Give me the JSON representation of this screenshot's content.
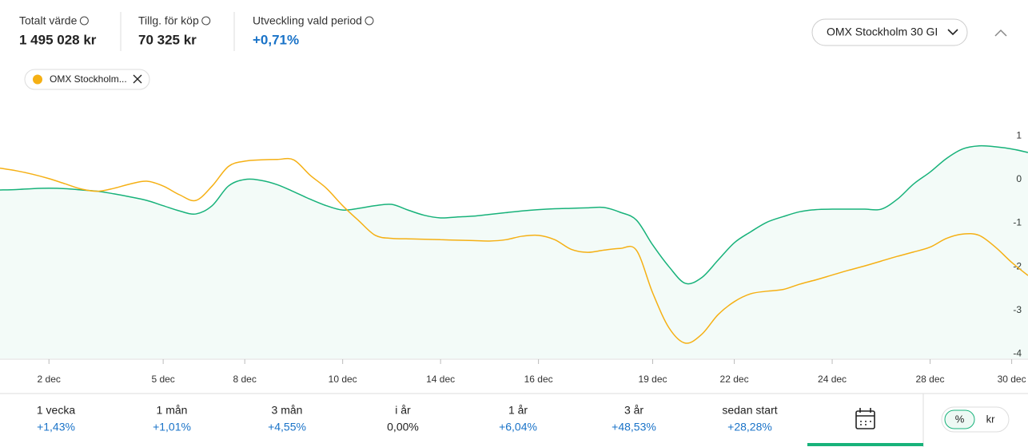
{
  "header": {
    "stats": [
      {
        "label": "Totalt värde",
        "value": "1 495 028 kr"
      },
      {
        "label": "Tillg. för köp",
        "value": "70 325 kr"
      },
      {
        "label": "Utveckling vald period",
        "value": "+0,71%"
      }
    ],
    "dropdown": "OMX Stockholm 30 GI",
    "chip": "OMX Stockholm..."
  },
  "chart_data": {
    "type": "line",
    "categories": [
      null,
      null,
      null,
      "2 dec",
      null,
      null,
      null,
      null,
      null,
      null,
      "5 dec",
      null,
      null,
      null,
      null,
      "8 dec",
      null,
      null,
      null,
      null,
      null,
      "10 dec",
      null,
      null,
      null,
      null,
      null,
      "14 dec",
      null,
      null,
      null,
      null,
      null,
      "16 dec",
      null,
      null,
      null,
      null,
      null,
      null,
      "19 dec",
      null,
      null,
      null,
      null,
      "22 dec",
      null,
      null,
      null,
      null,
      null,
      "24 dec",
      null,
      null,
      null,
      null,
      null,
      "28 dec",
      null,
      null,
      null,
      null,
      "30 dec",
      null
    ],
    "series": [
      {
        "color": "#17b27a",
        "area": true,
        "values": [
          -0.24,
          -0.23,
          -0.21,
          -0.2,
          -0.21,
          -0.24,
          -0.27,
          -0.33,
          -0.4,
          -0.48,
          -0.6,
          -0.72,
          -0.79,
          -0.6,
          -0.15,
          0.0,
          -0.02,
          -0.12,
          -0.28,
          -0.45,
          -0.6,
          -0.7,
          -0.66,
          -0.6,
          -0.57,
          -0.7,
          -0.82,
          -0.88,
          -0.86,
          -0.84,
          -0.8,
          -0.76,
          -0.72,
          -0.69,
          -0.67,
          -0.66,
          -0.65,
          -0.64,
          -0.75,
          -0.93,
          -1.5,
          -2.0,
          -2.38,
          -2.25,
          -1.85,
          -1.45,
          -1.2,
          -0.98,
          -0.85,
          -0.74,
          -0.69,
          -0.68,
          -0.68,
          -0.68,
          -0.68,
          -0.45,
          -0.1,
          0.17,
          0.48,
          0.7,
          0.77,
          0.75,
          0.7,
          0.62
        ]
      },
      {
        "name": "OMX Stockholm 30 GI",
        "color": "#f5b014",
        "values": [
          0.26,
          0.2,
          0.12,
          0.02,
          -0.1,
          -0.22,
          -0.27,
          -0.2,
          -0.1,
          -0.04,
          -0.15,
          -0.35,
          -0.48,
          -0.15,
          0.3,
          0.42,
          0.45,
          0.46,
          0.45,
          0.1,
          -0.2,
          -0.6,
          -0.95,
          -1.28,
          -1.35,
          -1.36,
          -1.37,
          -1.38,
          -1.39,
          -1.4,
          -1.41,
          -1.38,
          -1.3,
          -1.28,
          -1.38,
          -1.6,
          -1.67,
          -1.62,
          -1.58,
          -1.62,
          -2.6,
          -3.4,
          -3.75,
          -3.55,
          -3.1,
          -2.8,
          -2.62,
          -2.56,
          -2.52,
          -2.4,
          -2.3,
          -2.19,
          -2.08,
          -1.98,
          -1.87,
          -1.76,
          -1.66,
          -1.55,
          -1.35,
          -1.25,
          -1.28,
          -1.55,
          -1.9,
          -2.2
        ]
      }
    ],
    "ylim": [
      -4.1,
      1.9
    ],
    "yticks": [
      1,
      0,
      -1,
      -2,
      -3,
      -4
    ]
  },
  "periods": [
    {
      "label": "1 vecka",
      "value": "+1,43%"
    },
    {
      "label": "1 mån",
      "value": "+1,01%"
    },
    {
      "label": "3 mån",
      "value": "+4,55%"
    },
    {
      "label": "i år",
      "value": "0,00%"
    },
    {
      "label": "1 år",
      "value": "+6,04%"
    },
    {
      "label": "3 år",
      "value": "+48,53%"
    },
    {
      "label": "sedan start",
      "value": "+28,28%"
    }
  ],
  "toggle": [
    "%",
    "kr"
  ]
}
